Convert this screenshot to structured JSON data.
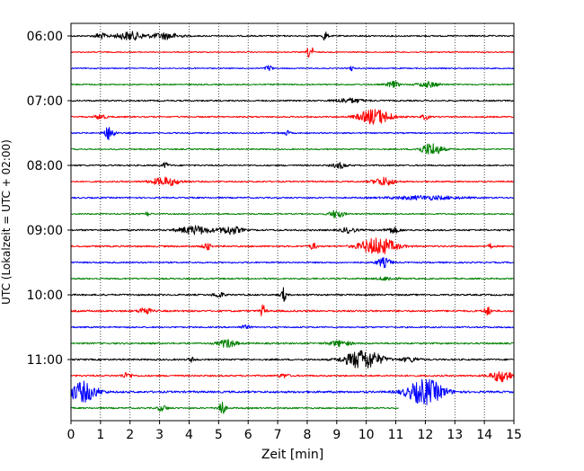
{
  "chart_data": {
    "type": "line",
    "title": "",
    "xlabel": "Zeit  [min]",
    "ylabel": "UTC (Lokalzeit = UTC + 02:00)",
    "xlim": [
      0,
      15
    ],
    "x_ticks": [
      0,
      1,
      2,
      3,
      4,
      5,
      6,
      7,
      8,
      9,
      10,
      11,
      12,
      13,
      14,
      15
    ],
    "x_tick_labels": [
      "0",
      "1",
      "2",
      "3",
      "4",
      "5",
      "6",
      "7",
      "8",
      "9",
      "10",
      "11",
      "12",
      "13",
      "14",
      "15"
    ],
    "y_ticks": [
      "06:00",
      "07:00",
      "08:00",
      "09:00",
      "10:00",
      "11:00"
    ],
    "grid": "vertical dotted",
    "line_colors": [
      "#000000",
      "#ff0000",
      "#0000ff",
      "#008000"
    ],
    "traces": [
      {
        "start": "06:00",
        "color": "#000000",
        "end_min": 15,
        "noise": 0.08,
        "bursts": [
          [
            1.0,
            0.35,
            0.3
          ],
          [
            2.0,
            0.8,
            0.45
          ],
          [
            3.2,
            0.8,
            0.35
          ],
          [
            8.6,
            0.15,
            0.55
          ]
        ]
      },
      {
        "start": "06:15",
        "color": "#ff0000",
        "end_min": 15,
        "noise": 0.06,
        "bursts": [
          [
            8.1,
            0.15,
            0.95
          ]
        ]
      },
      {
        "start": "06:30",
        "color": "#0000ff",
        "end_min": 15,
        "noise": 0.06,
        "bursts": [
          [
            6.7,
            0.2,
            0.35
          ],
          [
            9.5,
            0.1,
            0.3
          ]
        ]
      },
      {
        "start": "06:45",
        "color": "#008000",
        "end_min": 15,
        "noise": 0.07,
        "bursts": [
          [
            10.9,
            0.35,
            0.35
          ],
          [
            12.1,
            0.6,
            0.3
          ]
        ]
      },
      {
        "start": "07:00",
        "color": "#000000",
        "end_min": 15,
        "noise": 0.08,
        "bursts": [
          [
            9.4,
            0.8,
            0.25
          ]
        ]
      },
      {
        "start": "07:15",
        "color": "#ff0000",
        "end_min": 15,
        "noise": 0.08,
        "bursts": [
          [
            1.0,
            0.3,
            0.3
          ],
          [
            10.3,
            0.9,
            0.85
          ],
          [
            12.0,
            0.2,
            0.3
          ]
        ]
      },
      {
        "start": "07:30",
        "color": "#0000ff",
        "end_min": 15,
        "noise": 0.07,
        "bursts": [
          [
            1.3,
            0.3,
            0.75
          ],
          [
            7.3,
            0.2,
            0.25
          ]
        ]
      },
      {
        "start": "07:45",
        "color": "#008000",
        "end_min": 15,
        "noise": 0.07,
        "bursts": [
          [
            12.2,
            0.6,
            0.7
          ]
        ]
      },
      {
        "start": "08:00",
        "color": "#000000",
        "end_min": 15,
        "noise": 0.08,
        "bursts": [
          [
            3.2,
            0.2,
            0.3
          ],
          [
            9.1,
            0.4,
            0.3
          ]
        ]
      },
      {
        "start": "08:15",
        "color": "#ff0000",
        "end_min": 15,
        "noise": 0.08,
        "bursts": [
          [
            3.2,
            0.8,
            0.45
          ],
          [
            10.6,
            0.6,
            0.45
          ]
        ]
      },
      {
        "start": "08:30",
        "color": "#0000ff",
        "end_min": 15,
        "noise": 0.08,
        "bursts": [
          [
            12.0,
            2.0,
            0.2
          ]
        ]
      },
      {
        "start": "08:45",
        "color": "#008000",
        "end_min": 15,
        "noise": 0.07,
        "bursts": [
          [
            2.6,
            0.15,
            0.25
          ],
          [
            9.0,
            0.4,
            0.45
          ]
        ]
      },
      {
        "start": "09:00",
        "color": "#000000",
        "end_min": 15,
        "noise": 0.09,
        "bursts": [
          [
            4.2,
            0.9,
            0.45
          ],
          [
            5.4,
            0.6,
            0.45
          ],
          [
            9.4,
            0.4,
            0.3
          ],
          [
            10.9,
            0.4,
            0.3
          ]
        ]
      },
      {
        "start": "09:15",
        "color": "#ff0000",
        "end_min": 15,
        "noise": 0.09,
        "bursts": [
          [
            4.6,
            0.2,
            0.45
          ],
          [
            8.2,
            0.2,
            0.35
          ],
          [
            10.4,
            1.0,
            0.95
          ],
          [
            14.2,
            0.1,
            0.3
          ]
        ]
      },
      {
        "start": "09:30",
        "color": "#0000ff",
        "end_min": 15,
        "noise": 0.08,
        "bursts": [
          [
            10.6,
            0.4,
            0.5
          ]
        ]
      },
      {
        "start": "09:45",
        "color": "#008000",
        "end_min": 15,
        "noise": 0.08,
        "bursts": [
          [
            10.7,
            0.5,
            0.2
          ]
        ]
      },
      {
        "start": "10:00",
        "color": "#000000",
        "end_min": 15,
        "noise": 0.09,
        "bursts": [
          [
            5.0,
            0.3,
            0.3
          ],
          [
            7.2,
            0.15,
            0.75
          ]
        ]
      },
      {
        "start": "10:15",
        "color": "#ff0000",
        "end_min": 15,
        "noise": 0.1,
        "bursts": [
          [
            2.5,
            0.3,
            0.45
          ],
          [
            6.5,
            0.15,
            0.65
          ],
          [
            14.1,
            0.2,
            0.45
          ]
        ]
      },
      {
        "start": "10:30",
        "color": "#0000ff",
        "end_min": 15,
        "noise": 0.08,
        "bursts": [
          [
            5.9,
            0.3,
            0.2
          ]
        ]
      },
      {
        "start": "10:45",
        "color": "#008000",
        "end_min": 15,
        "noise": 0.09,
        "bursts": [
          [
            5.3,
            0.5,
            0.45
          ],
          [
            9.1,
            0.6,
            0.3
          ]
        ]
      },
      {
        "start": "11:00",
        "color": "#000000",
        "end_min": 15,
        "noise": 0.09,
        "bursts": [
          [
            4.1,
            0.2,
            0.25
          ],
          [
            9.9,
            1.0,
            1.1
          ],
          [
            11.5,
            0.5,
            0.25
          ]
        ]
      },
      {
        "start": "11:15",
        "color": "#ff0000",
        "end_min": 15,
        "noise": 0.09,
        "bursts": [
          [
            1.9,
            0.3,
            0.3
          ],
          [
            7.2,
            0.3,
            0.2
          ],
          [
            14.6,
            0.6,
            0.65
          ]
        ]
      },
      {
        "start": "11:30",
        "color": "#0000ff",
        "end_min": 15,
        "noise": 0.11,
        "bursts": [
          [
            0.4,
            0.8,
            1.1
          ],
          [
            12.0,
            1.0,
            1.4
          ]
        ]
      },
      {
        "start": "11:45",
        "color": "#008000",
        "end_min": 11.1,
        "noise": 0.08,
        "bursts": [
          [
            3.1,
            0.3,
            0.3
          ],
          [
            5.1,
            0.2,
            0.85
          ]
        ]
      }
    ]
  }
}
